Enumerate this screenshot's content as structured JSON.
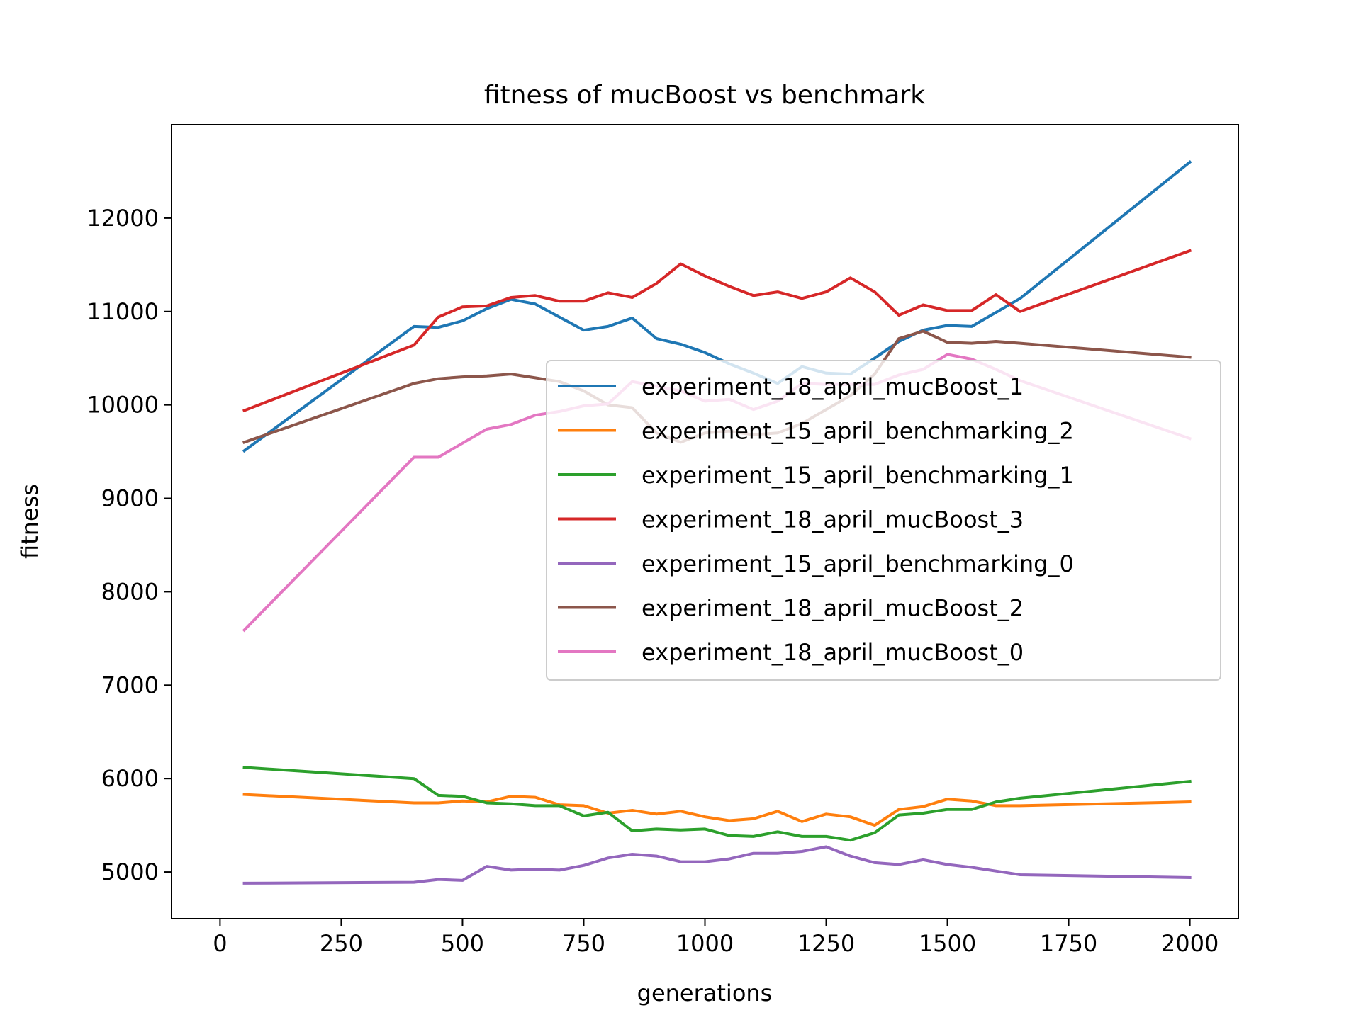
{
  "chart_data": {
    "type": "line",
    "title": "fitness of mucBoost vs benchmark",
    "xlabel": "generations",
    "ylabel": "fitness",
    "xlim": [
      -100,
      2100
    ],
    "ylim": [
      4500,
      13000
    ],
    "xticks": [
      0,
      250,
      500,
      750,
      1000,
      1250,
      1500,
      1750,
      2000
    ],
    "yticks": [
      5000,
      6000,
      7000,
      8000,
      9000,
      10000,
      11000,
      12000
    ],
    "grid": false,
    "legend_position": "center-right",
    "x": [
      50,
      400,
      450,
      500,
      550,
      600,
      650,
      700,
      750,
      800,
      850,
      900,
      950,
      1000,
      1050,
      1100,
      1150,
      1200,
      1250,
      1300,
      1350,
      1400,
      1450,
      1500,
      1550,
      1600,
      1650,
      2000
    ],
    "series": [
      {
        "name": "experiment_18_april_mucBoost_1",
        "color": "#1f77b4",
        "values": [
          9510,
          10840,
          10830,
          10900,
          11030,
          11130,
          11080,
          10940,
          10800,
          10840,
          10930,
          10710,
          10650,
          10560,
          10440,
          10340,
          10230,
          10410,
          10340,
          10330,
          10500,
          10680,
          10800,
          10850,
          10840,
          10990,
          11140,
          12600
        ]
      },
      {
        "name": "experiment_15_april_benchmarking_2",
        "color": "#ff7f0e",
        "values": [
          5830,
          5740,
          5740,
          5760,
          5750,
          5810,
          5800,
          5720,
          5710,
          5630,
          5660,
          5620,
          5650,
          5590,
          5550,
          5570,
          5650,
          5540,
          5620,
          5590,
          5500,
          5670,
          5700,
          5780,
          5760,
          5710,
          5710,
          5750
        ]
      },
      {
        "name": "experiment_15_april_benchmarking_1",
        "color": "#2ca02c",
        "values": [
          6120,
          6000,
          5820,
          5810,
          5740,
          5730,
          5710,
          5710,
          5600,
          5640,
          5440,
          5460,
          5450,
          5460,
          5390,
          5380,
          5430,
          5380,
          5380,
          5340,
          5420,
          5610,
          5630,
          5670,
          5670,
          5750,
          5790,
          5970
        ]
      },
      {
        "name": "experiment_18_april_mucBoost_3",
        "color": "#d62728",
        "values": [
          9940,
          10640,
          10940,
          11050,
          11060,
          11150,
          11170,
          11110,
          11110,
          11200,
          11150,
          11300,
          11510,
          11380,
          11270,
          11170,
          11210,
          11140,
          11210,
          11360,
          11210,
          10960,
          11070,
          11010,
          11010,
          11180,
          11000,
          11650
        ]
      },
      {
        "name": "experiment_15_april_benchmarking_0",
        "color": "#9467bd",
        "values": [
          4880,
          4890,
          4920,
          4910,
          5060,
          5020,
          5030,
          5020,
          5070,
          5150,
          5190,
          5170,
          5110,
          5110,
          5140,
          5200,
          5200,
          5220,
          5270,
          5170,
          5100,
          5080,
          5130,
          5080,
          5050,
          5010,
          4970,
          4940
        ]
      },
      {
        "name": "experiment_18_april_mucBoost_2",
        "color": "#8c564b",
        "values": [
          9600,
          10230,
          10280,
          10300,
          10310,
          10330,
          10290,
          10250,
          10150,
          10000,
          9970,
          9700,
          9600,
          9700,
          9720,
          9680,
          9700,
          9800,
          9950,
          10100,
          10330,
          10710,
          10790,
          10670,
          10660,
          10680,
          10660,
          10510
        ]
      },
      {
        "name": "experiment_18_april_mucBoost_0",
        "color": "#e377c2",
        "values": [
          7590,
          9440,
          9440,
          9590,
          9740,
          9790,
          9890,
          9930,
          9990,
          10010,
          10250,
          10200,
          10150,
          10040,
          10060,
          9950,
          10040,
          10230,
          10220,
          10220,
          10220,
          10320,
          10380,
          10540,
          10490,
          10380,
          10260,
          9640
        ]
      }
    ]
  }
}
